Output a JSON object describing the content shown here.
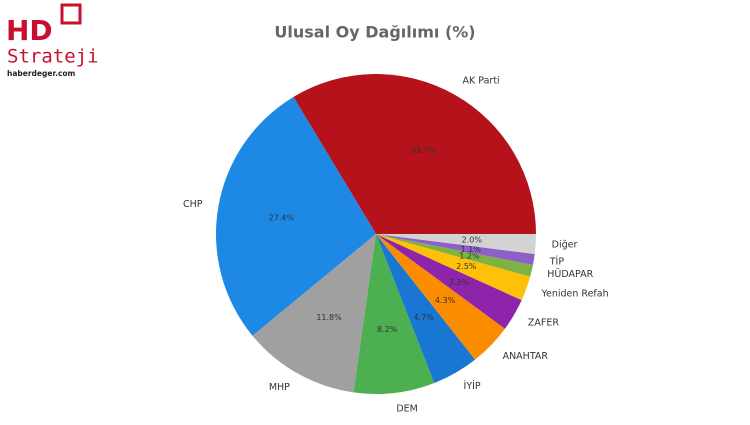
{
  "logo": {
    "mark": "HD",
    "name": "Strateji",
    "site": "haberdeger.com"
  },
  "chart_data": {
    "type": "pie",
    "title": "Ulusal Oy Dağılımı (%)",
    "categories": [
      "AK Parti",
      "CHP",
      "MHP",
      "DEM",
      "İYİP",
      "ANAHTAR",
      "ZAFER",
      "Yeniden Refah",
      "HÜDAPAR",
      "TİP",
      "Diğer"
    ],
    "values": [
      33.7,
      27.4,
      11.8,
      8.2,
      4.7,
      4.3,
      3.3,
      2.5,
      1.2,
      1.1,
      2.0
    ],
    "value_labels": [
      "33.7%",
      "27.4%",
      "11.8%",
      "8.2%",
      "4.7%",
      "4.3%",
      "3.3%",
      "2.5%",
      "1.2%",
      "1.1%",
      "2.0%"
    ],
    "colors": [
      "#b5121b",
      "#1e88e5",
      "#a0a0a0",
      "#4caf50",
      "#1976d2",
      "#fb8c00",
      "#8e24aa",
      "#ffc107",
      "#7cb342",
      "#8e5ec9",
      "#d3d3d3"
    ]
  }
}
